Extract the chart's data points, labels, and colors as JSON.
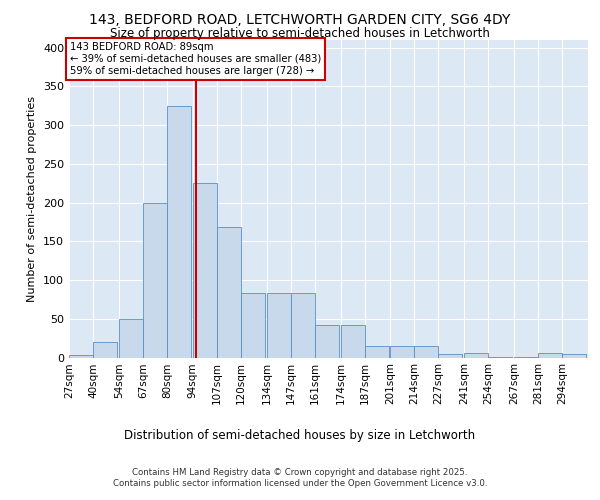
{
  "title_line1": "143, BEDFORD ROAD, LETCHWORTH GARDEN CITY, SG6 4DY",
  "title_line2": "Size of property relative to semi-detached houses in Letchworth",
  "xlabel": "Distribution of semi-detached houses by size in Letchworth",
  "ylabel": "Number of semi-detached properties",
  "bar_color": "#c9d9ec",
  "bar_edge_color": "#5b8ec4",
  "annotation_box_color": "#cc0000",
  "vline_color": "#cc0000",
  "background_color": "#dde8f5",
  "annotation_title": "143 BEDFORD ROAD: 89sqm",
  "annotation_line2": "← 39% of semi-detached houses are smaller (483)",
  "annotation_line3": "59% of semi-detached houses are larger (728) →",
  "property_size": 89,
  "footer_line1": "Contains HM Land Registry data © Crown copyright and database right 2025.",
  "footer_line2": "Contains public sector information licensed under the Open Government Licence v3.0.",
  "categories": [
    "27sqm",
    "40sqm",
    "54sqm",
    "67sqm",
    "80sqm",
    "94sqm",
    "107sqm",
    "120sqm",
    "134sqm",
    "147sqm",
    "161sqm",
    "174sqm",
    "187sqm",
    "201sqm",
    "214sqm",
    "227sqm",
    "241sqm",
    "254sqm",
    "267sqm",
    "281sqm",
    "294sqm"
  ],
  "values": [
    3,
    20,
    50,
    200,
    325,
    225,
    168,
    83,
    83,
    83,
    42,
    42,
    15,
    15,
    15,
    5,
    6,
    1,
    1,
    6,
    5
  ],
  "bin_edges": [
    20,
    33,
    47,
    60,
    73,
    87,
    100,
    113,
    127,
    140,
    153,
    167,
    180,
    194,
    207,
    220,
    234,
    247,
    261,
    274,
    287,
    301
  ],
  "ylim": [
    0,
    410
  ],
  "yticks": [
    0,
    50,
    100,
    150,
    200,
    250,
    300,
    350,
    400
  ],
  "vline_x": 89
}
